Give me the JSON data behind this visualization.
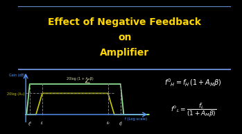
{
  "bg_color": "#000000",
  "title_border_color": "#6688cc",
  "title_text": "Effect of Negative Feedback\non\nAmplifier",
  "title_color": "#FFD700",
  "title_fontsize": 10,
  "axis_color": "#5599ff",
  "gain_label": "Gain (dB)",
  "freq_label": "f (Log scale)",
  "am_label": "20log (Aₘ)",
  "amf_label": "20log (1 + Aₘβ)",
  "original_line_color": "#cccc00",
  "feedback_line_color": "#99ee99",
  "dashed_color": "#777777",
  "eq1": "$f'_H = f_H\\,(1 + A_M\\beta)$",
  "eq2": "$f'_L = \\dfrac{f_L}{(1 + A_M\\beta)}$",
  "eq_color": "#FFFFFF",
  "eq1_fontsize": 7.0,
  "eq2_fontsize": 6.5,
  "fl_prime": 0.6,
  "fl": 1.4,
  "fh": 5.6,
  "fh_prime": 6.4,
  "am_gain": 0.5,
  "amf_gain": 0.72,
  "xlim": [
    0,
    8.5
  ],
  "ylim": [
    -0.25,
    1.05
  ]
}
